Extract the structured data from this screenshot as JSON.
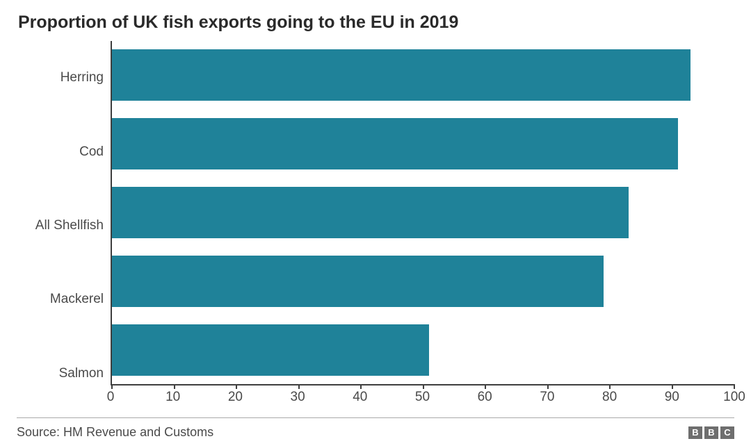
{
  "chart": {
    "type": "bar-horizontal",
    "title": "Proportion of UK fish exports going to the EU in 2019",
    "title_fontsize": 25,
    "title_color": "#2a2a2a",
    "background_color": "#ffffff",
    "bar_color": "#1f8299",
    "axis_color": "#3e3e3e",
    "label_color": "#4a4a4a",
    "label_fontsize": 19,
    "bar_band_ratio": 0.75,
    "xlim": [
      0,
      100
    ],
    "xtick_step": 10,
    "xticks": [
      {
        "v": 0,
        "label": "0"
      },
      {
        "v": 10,
        "label": "10"
      },
      {
        "v": 20,
        "label": "20"
      },
      {
        "v": 30,
        "label": "30"
      },
      {
        "v": 40,
        "label": "40"
      },
      {
        "v": 50,
        "label": "50"
      },
      {
        "v": 60,
        "label": "60"
      },
      {
        "v": 70,
        "label": "70"
      },
      {
        "v": 80,
        "label": "80"
      },
      {
        "v": 90,
        "label": "90"
      },
      {
        "v": 100,
        "label": "100"
      }
    ],
    "categories": [
      "Herring",
      "Cod",
      "All Shellfish",
      "Mackerel",
      "Salmon"
    ],
    "values": [
      93,
      91,
      83,
      79,
      51
    ]
  },
  "footer": {
    "source": "Source: HM Revenue and Customs",
    "logo_letters": [
      "B",
      "B",
      "C"
    ],
    "logo_bg": "#6e6e6e",
    "logo_fg": "#ffffff",
    "divider_color": "#a9a9a9"
  }
}
